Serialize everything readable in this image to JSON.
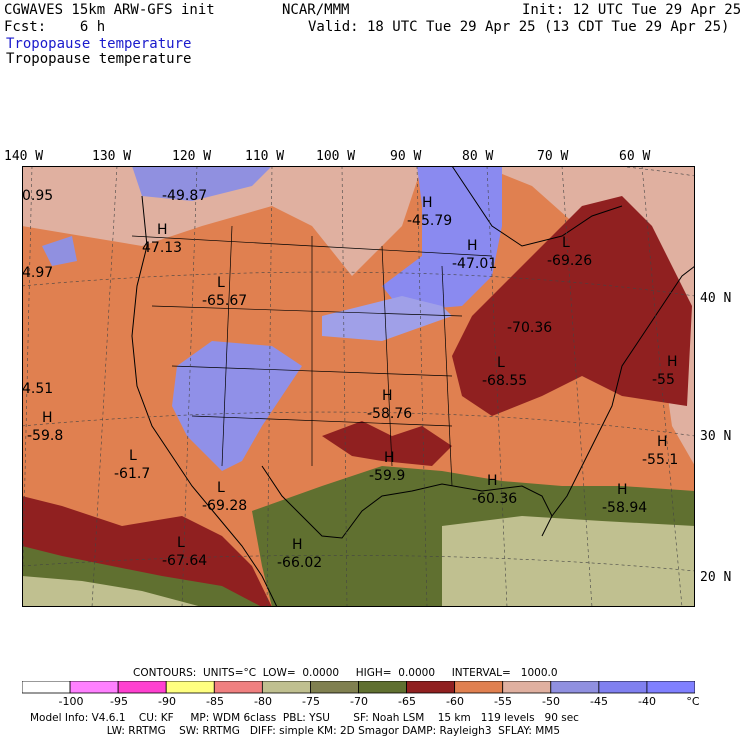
{
  "header": {
    "model": "CGWAVES 15km ARW-GFS init",
    "org": "NCAR/MMM",
    "init": "Init: 12 UTC Tue 29 Apr 25",
    "fcst": "Fcst:    6 h",
    "valid": "Valid: 18 UTC Tue 29 Apr 25 (13 CDT Tue 29 Apr 25)",
    "field1": "Tropopause temperature",
    "field2": "Tropopause temperature"
  },
  "longitudes": [
    "140 W",
    "130 W",
    "120 W",
    "110 W",
    "100 W",
    "90 W",
    "80 W",
    "70 W",
    "60 W"
  ],
  "latitudes": [
    "40 N",
    "30 N",
    "20 N"
  ],
  "map_labels": [
    {
      "letter": "",
      "value": "0.95"
    },
    {
      "letter": "",
      "value": "-49.87"
    },
    {
      "letter": "H",
      "value": "-45.79"
    },
    {
      "letter": "H",
      "value": "47.13"
    },
    {
      "letter": "",
      "value": "4.97"
    },
    {
      "letter": "L",
      "value": "-65.67"
    },
    {
      "letter": "H",
      "value": "-47.01"
    },
    {
      "letter": "L",
      "value": "-69.26"
    },
    {
      "letter": "",
      "value": "-70.36"
    },
    {
      "letter": "H",
      "value": "-55"
    },
    {
      "letter": "L",
      "value": "-68.55"
    },
    {
      "letter": "",
      "value": "4.51"
    },
    {
      "letter": "H",
      "value": "-58.76"
    },
    {
      "letter": "H",
      "value": "-59.8"
    },
    {
      "letter": "L",
      "value": "-61.7"
    },
    {
      "letter": "H",
      "value": "-55.1"
    },
    {
      "letter": "H",
      "value": "-59.9"
    },
    {
      "letter": "L",
      "value": "-69.28"
    },
    {
      "letter": "H",
      "value": "-60.36"
    },
    {
      "letter": "H",
      "value": "-58.94"
    },
    {
      "letter": "L",
      "value": "-67.64"
    },
    {
      "letter": "H",
      "value": "-66.02"
    }
  ],
  "contours_line": "CONTOURS:  UNITS=°C  LOW=  0.0000     HIGH=  0.0000     INTERVAL=   1000.0",
  "colorbar": {
    "colors": [
      "#ffffff",
      "#ff80ff",
      "#ff40d0",
      "#ffff80",
      "#f08080",
      "#c0c090",
      "#808050",
      "#607030",
      "#902020",
      "#e08050",
      "#e0b0a0",
      "#9090e0",
      "#8080f0",
      "#8080ff"
    ],
    "ticks": [
      "-100",
      "-95",
      "-90",
      "-85",
      "-80",
      "-75",
      "-70",
      "-65",
      "-60",
      "-55",
      "-50",
      "-45",
      "-40",
      "°C"
    ]
  },
  "footer": {
    "line1": "Model Info: V4.6.1    CU: KF     MP: WDM 6class  PBL: YSU       SF: Noah LSM    15 km   119 levels   90 sec",
    "line2": "                       LW: RRTMG    SW: RRTMG   DIFF: simple KM: 2D Smagor DAMP: Rayleigh3  SFLAY: MM5"
  }
}
